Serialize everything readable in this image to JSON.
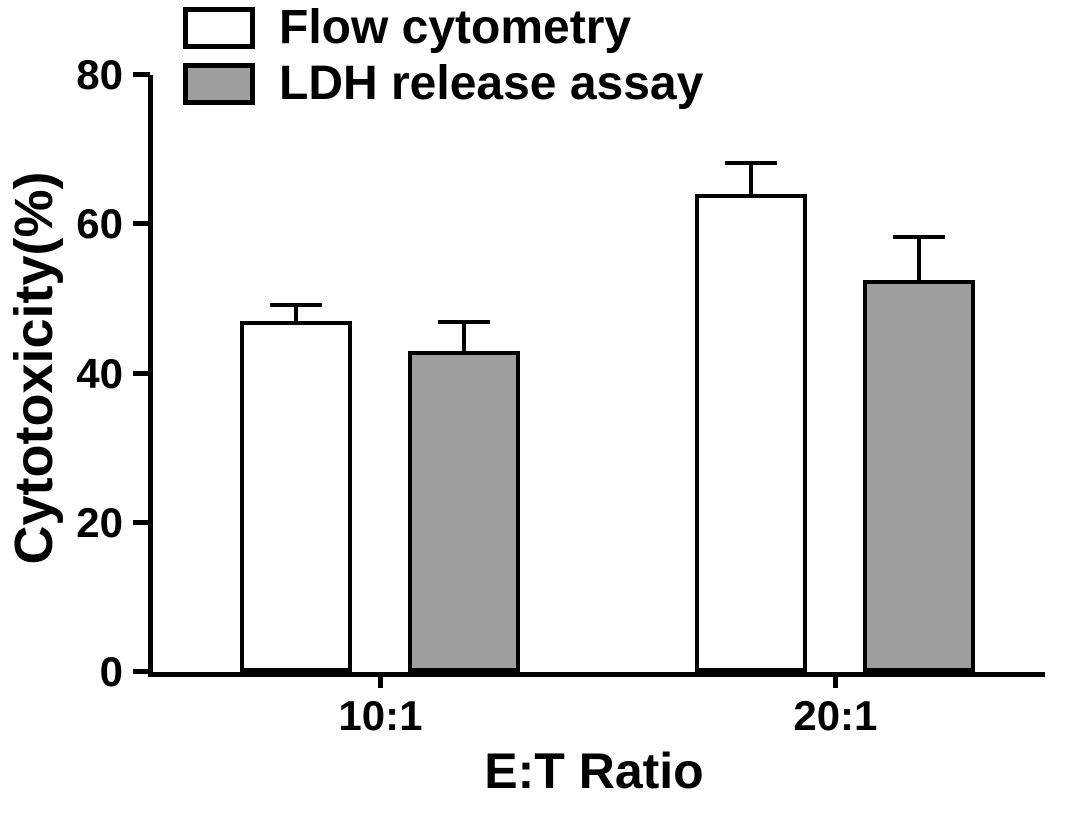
{
  "chart_data": {
    "type": "bar",
    "title": "",
    "categories": [
      "10:1",
      "20:1"
    ],
    "series": [
      {
        "name": "Flow cytometry",
        "fill": "#ffffff",
        "values": [
          47,
          64
        ],
        "errors": [
          2.4,
          4.5
        ]
      },
      {
        "name": "LDH release assay",
        "fill": "#9e9e9e",
        "values": [
          43,
          52.5
        ],
        "errors": [
          4.2,
          6.0
        ]
      }
    ],
    "xlabel": "E:T Ratio",
    "ylabel": "Cytotoxicity(%)",
    "ylim": [
      0,
      80
    ],
    "yticks": [
      0,
      20,
      40,
      60,
      80
    ],
    "grid": false,
    "legend_position": "top-left",
    "axis_color": "#000000",
    "background_color": "#ffffff"
  }
}
